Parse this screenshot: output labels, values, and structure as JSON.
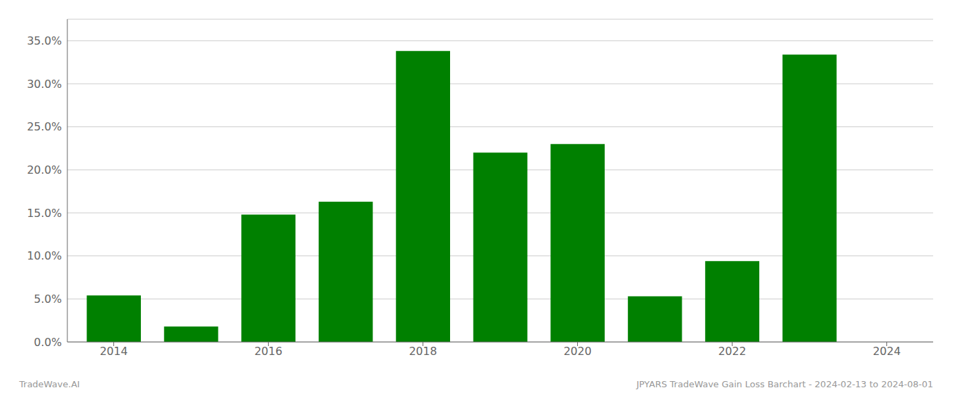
{
  "chart_data": {
    "type": "bar",
    "x": [
      2014,
      2015,
      2016,
      2017,
      2018,
      2019,
      2020,
      2021,
      2022,
      2023
    ],
    "values": [
      0.054,
      0.018,
      0.148,
      0.163,
      0.338,
      0.22,
      0.23,
      0.053,
      0.094,
      0.334
    ],
    "color": "#008000",
    "xlim": [
      2013.4,
      2024.6
    ],
    "xticks": [
      2014,
      2016,
      2018,
      2020,
      2022,
      2024
    ],
    "ylim": [
      0,
      0.375
    ],
    "yticks": [
      {
        "value": 0.0,
        "label": "0.0%"
      },
      {
        "value": 0.05,
        "label": "5.0%"
      },
      {
        "value": 0.1,
        "label": "10.0%"
      },
      {
        "value": 0.15,
        "label": "15.0%"
      },
      {
        "value": 0.2,
        "label": "20.0%"
      },
      {
        "value": 0.25,
        "label": "25.0%"
      },
      {
        "value": 0.3,
        "label": "30.0%"
      },
      {
        "value": 0.35,
        "label": "35.0%"
      }
    ],
    "grid": true,
    "annotations": [
      "TradeWave.AI",
      "JPYARS TradeWave Gain Loss Barchart - 2024-02-13 to 2024-08-01"
    ]
  }
}
